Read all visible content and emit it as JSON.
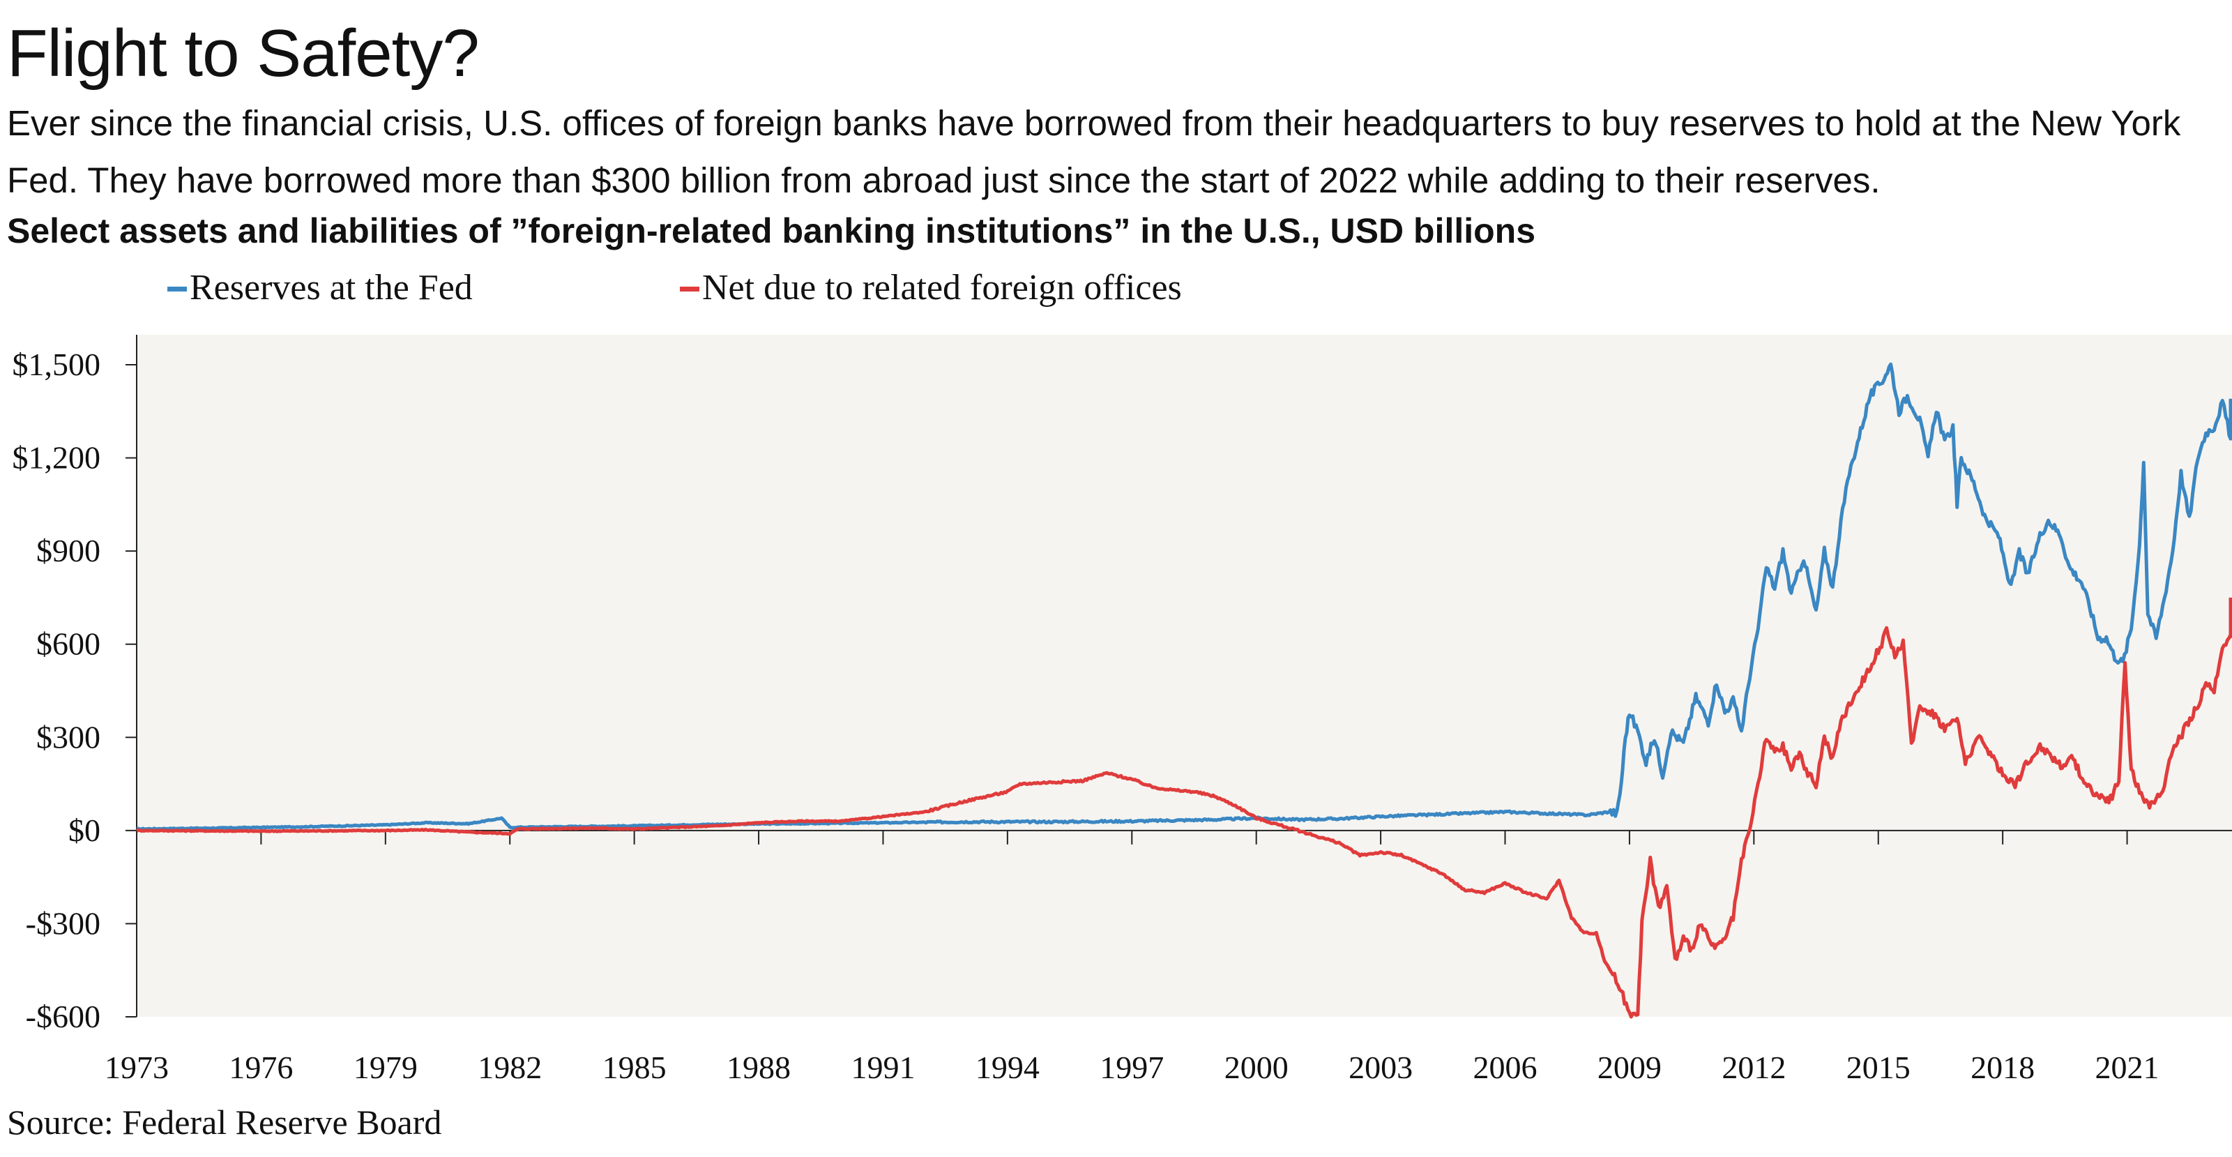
{
  "header": {
    "title": "Flight to Safety?",
    "subtitle": "Ever since the financial crisis, U.S. offices of foreign banks have borrowed from their headquarters to buy reserves to hold at the New York Fed. They have borrowed more than $300 billion from abroad just since the start of 2022 while adding to their reserves.",
    "chart_heading": "Select assets and liabilities of ”foreign-related banking institutions” in the U.S., USD billions"
  },
  "footer": {
    "source": "Source: Federal Reserve Board"
  },
  "colors": {
    "reserves": "#3a87c3",
    "net_due": "#e03c3c",
    "plot_bg": "#f6f4f0",
    "axis": "#222222"
  },
  "chart_data": {
    "type": "line",
    "title": "Select assets and liabilities of ”foreign-related banking institutions” in the U.S., USD billions",
    "xlabel": "",
    "ylabel": "",
    "xlim": [
      1973,
      2023.5
    ],
    "ylim": [
      -600,
      1600
    ],
    "grid": false,
    "legend_position": "top-left",
    "y_ticks": [
      {
        "value": 1500,
        "label": "$1,500"
      },
      {
        "value": 1200,
        "label": "$1,200"
      },
      {
        "value": 900,
        "label": "$900"
      },
      {
        "value": 600,
        "label": "$600"
      },
      {
        "value": 300,
        "label": "$300"
      },
      {
        "value": 0,
        "label": "$0"
      },
      {
        "value": -300,
        "label": "-$300"
      },
      {
        "value": -600,
        "label": "-$600"
      }
    ],
    "x_ticks": [
      {
        "value": 1973,
        "label": "1973"
      },
      {
        "value": 1976,
        "label": "1976"
      },
      {
        "value": 1979,
        "label": "1979"
      },
      {
        "value": 1982,
        "label": "1982"
      },
      {
        "value": 1985,
        "label": "1985"
      },
      {
        "value": 1988,
        "label": "1988"
      },
      {
        "value": 1991,
        "label": "1991"
      },
      {
        "value": 1994,
        "label": "1994"
      },
      {
        "value": 1997,
        "label": "1997"
      },
      {
        "value": 2000,
        "label": "2000"
      },
      {
        "value": 2003,
        "label": "2003"
      },
      {
        "value": 2006,
        "label": "2006"
      },
      {
        "value": 2009,
        "label": "2009"
      },
      {
        "value": 2012,
        "label": "2012"
      },
      {
        "value": 2015,
        "label": "2015"
      },
      {
        "value": 2018,
        "label": "2018"
      },
      {
        "value": 2021,
        "label": "2021"
      }
    ],
    "series": [
      {
        "name": "Reserves at the Fed",
        "color": "#3a87c3",
        "points": [
          [
            1973.0,
            5
          ],
          [
            1975.0,
            8
          ],
          [
            1977.0,
            12
          ],
          [
            1979.0,
            18
          ],
          [
            1980.0,
            25
          ],
          [
            1981.0,
            22
          ],
          [
            1981.6,
            35
          ],
          [
            1981.8,
            40
          ],
          [
            1982.0,
            10
          ],
          [
            1983.0,
            12
          ],
          [
            1985.0,
            15
          ],
          [
            1987.0,
            20
          ],
          [
            1989.0,
            22
          ],
          [
            1991.0,
            25
          ],
          [
            1993.0,
            28
          ],
          [
            1995.0,
            28
          ],
          [
            1997.0,
            30
          ],
          [
            1999.0,
            35
          ],
          [
            2000.0,
            40
          ],
          [
            2001.0,
            35
          ],
          [
            2002.0,
            38
          ],
          [
            2003.0,
            45
          ],
          [
            2004.0,
            50
          ],
          [
            2005.0,
            55
          ],
          [
            2006.0,
            60
          ],
          [
            2007.0,
            55
          ],
          [
            2008.0,
            50
          ],
          [
            2008.5,
            60
          ],
          [
            2008.7,
            55
          ],
          [
            2008.8,
            150
          ],
          [
            2008.9,
            300
          ],
          [
            2009.0,
            380
          ],
          [
            2009.2,
            320
          ],
          [
            2009.4,
            220
          ],
          [
            2009.6,
            300
          ],
          [
            2009.8,
            180
          ],
          [
            2010.0,
            320
          ],
          [
            2010.3,
            280
          ],
          [
            2010.6,
            430
          ],
          [
            2010.9,
            350
          ],
          [
            2011.1,
            480
          ],
          [
            2011.3,
            380
          ],
          [
            2011.5,
            420
          ],
          [
            2011.7,
            320
          ],
          [
            2011.9,
            500
          ],
          [
            2012.1,
            650
          ],
          [
            2012.3,
            850
          ],
          [
            2012.5,
            780
          ],
          [
            2012.7,
            900
          ],
          [
            2012.9,
            760
          ],
          [
            2013.2,
            880
          ],
          [
            2013.5,
            700
          ],
          [
            2013.7,
            900
          ],
          [
            2013.9,
            780
          ],
          [
            2014.1,
            1000
          ],
          [
            2014.3,
            1150
          ],
          [
            2014.5,
            1250
          ],
          [
            2014.8,
            1400
          ],
          [
            2015.1,
            1450
          ],
          [
            2015.3,
            1500
          ],
          [
            2015.5,
            1350
          ],
          [
            2015.7,
            1400
          ],
          [
            2016.0,
            1320
          ],
          [
            2016.2,
            1200
          ],
          [
            2016.4,
            1360
          ],
          [
            2016.6,
            1250
          ],
          [
            2016.8,
            1300
          ],
          [
            2016.9,
            1050
          ],
          [
            2017.0,
            1200
          ],
          [
            2017.3,
            1120
          ],
          [
            2017.6,
            1000
          ],
          [
            2017.9,
            950
          ],
          [
            2018.2,
            780
          ],
          [
            2018.4,
            900
          ],
          [
            2018.6,
            820
          ],
          [
            2018.9,
            950
          ],
          [
            2019.1,
            1000
          ],
          [
            2019.4,
            950
          ],
          [
            2019.6,
            850
          ],
          [
            2019.9,
            800
          ],
          [
            2020.1,
            720
          ],
          [
            2020.3,
            620
          ],
          [
            2020.5,
            620
          ],
          [
            2020.7,
            560
          ],
          [
            2020.9,
            540
          ],
          [
            2021.1,
            650
          ],
          [
            2021.3,
            920
          ],
          [
            2021.4,
            1190
          ],
          [
            2021.5,
            700
          ],
          [
            2021.7,
            620
          ],
          [
            2021.9,
            750
          ],
          [
            2022.1,
            900
          ],
          [
            2022.3,
            1150
          ],
          [
            2022.5,
            1000
          ],
          [
            2022.7,
            1200
          ],
          [
            2022.9,
            1280
          ],
          [
            2023.1,
            1300
          ],
          [
            2023.3,
            1380
          ],
          [
            2023.5,
            1260
          ],
          [
            2023.7,
            1350
          ],
          [
            2024.0,
            1390
          ]
        ]
      },
      {
        "name": "Net due to related foreign offices",
        "color": "#e03c3c",
        "points": [
          [
            1973.0,
            0
          ],
          [
            1976.0,
            -2
          ],
          [
            1979.0,
            0
          ],
          [
            1980.0,
            2
          ],
          [
            1981.0,
            -5
          ],
          [
            1982.0,
            -10
          ],
          [
            1982.2,
            5
          ],
          [
            1984.0,
            8
          ],
          [
            1985.0,
            5
          ],
          [
            1986.0,
            10
          ],
          [
            1987.0,
            15
          ],
          [
            1988.0,
            25
          ],
          [
            1989.0,
            30
          ],
          [
            1990.0,
            30
          ],
          [
            1991.0,
            45
          ],
          [
            1992.0,
            60
          ],
          [
            1993.0,
            95
          ],
          [
            1994.0,
            125
          ],
          [
            1994.3,
            150
          ],
          [
            1995.0,
            155
          ],
          [
            1995.8,
            160
          ],
          [
            1996.4,
            185
          ],
          [
            1997.0,
            165
          ],
          [
            1997.5,
            140
          ],
          [
            1998.0,
            130
          ],
          [
            1998.5,
            125
          ],
          [
            1999.0,
            110
          ],
          [
            1999.5,
            80
          ],
          [
            2000.0,
            40
          ],
          [
            2001.0,
            0
          ],
          [
            2002.0,
            -40
          ],
          [
            2002.5,
            -80
          ],
          [
            2003.0,
            -70
          ],
          [
            2003.5,
            -80
          ],
          [
            2004.0,
            -110
          ],
          [
            2004.5,
            -140
          ],
          [
            2005.0,
            -190
          ],
          [
            2005.5,
            -200
          ],
          [
            2006.0,
            -170
          ],
          [
            2006.5,
            -200
          ],
          [
            2007.0,
            -220
          ],
          [
            2007.3,
            -160
          ],
          [
            2007.6,
            -280
          ],
          [
            2007.9,
            -330
          ],
          [
            2008.2,
            -330
          ],
          [
            2008.4,
            -420
          ],
          [
            2008.6,
            -460
          ],
          [
            2008.8,
            -520
          ],
          [
            2009.0,
            -590
          ],
          [
            2009.2,
            -580
          ],
          [
            2009.3,
            -300
          ],
          [
            2009.5,
            -100
          ],
          [
            2009.7,
            -250
          ],
          [
            2009.9,
            -180
          ],
          [
            2010.1,
            -420
          ],
          [
            2010.3,
            -350
          ],
          [
            2010.5,
            -380
          ],
          [
            2010.7,
            -300
          ],
          [
            2010.9,
            -350
          ],
          [
            2011.1,
            -380
          ],
          [
            2011.3,
            -350
          ],
          [
            2011.5,
            -280
          ],
          [
            2011.7,
            -100
          ],
          [
            2011.9,
            0
          ],
          [
            2012.1,
            150
          ],
          [
            2012.3,
            300
          ],
          [
            2012.5,
            250
          ],
          [
            2012.7,
            270
          ],
          [
            2012.9,
            200
          ],
          [
            2013.1,
            250
          ],
          [
            2013.3,
            180
          ],
          [
            2013.5,
            150
          ],
          [
            2013.7,
            300
          ],
          [
            2013.9,
            230
          ],
          [
            2014.1,
            350
          ],
          [
            2014.4,
            430
          ],
          [
            2014.7,
            500
          ],
          [
            2015.0,
            580
          ],
          [
            2015.2,
            640
          ],
          [
            2015.4,
            570
          ],
          [
            2015.6,
            600
          ],
          [
            2015.8,
            280
          ],
          [
            2016.0,
            400
          ],
          [
            2016.3,
            380
          ],
          [
            2016.6,
            330
          ],
          [
            2016.9,
            360
          ],
          [
            2017.1,
            220
          ],
          [
            2017.4,
            300
          ],
          [
            2017.7,
            250
          ],
          [
            2018.0,
            180
          ],
          [
            2018.3,
            150
          ],
          [
            2018.6,
            220
          ],
          [
            2018.9,
            270
          ],
          [
            2019.1,
            250
          ],
          [
            2019.4,
            210
          ],
          [
            2019.7,
            230
          ],
          [
            2020.0,
            150
          ],
          [
            2020.3,
            110
          ],
          [
            2020.6,
            100
          ],
          [
            2020.8,
            160
          ],
          [
            2020.95,
            540
          ],
          [
            2021.1,
            200
          ],
          [
            2021.3,
            120
          ],
          [
            2021.5,
            80
          ],
          [
            2021.7,
            100
          ],
          [
            2021.9,
            150
          ],
          [
            2022.1,
            260
          ],
          [
            2022.4,
            330
          ],
          [
            2022.7,
            400
          ],
          [
            2022.9,
            470
          ],
          [
            2023.1,
            450
          ],
          [
            2023.3,
            600
          ],
          [
            2023.5,
            620
          ],
          [
            2023.7,
            700
          ],
          [
            2024.0,
            750
          ]
        ]
      }
    ]
  }
}
